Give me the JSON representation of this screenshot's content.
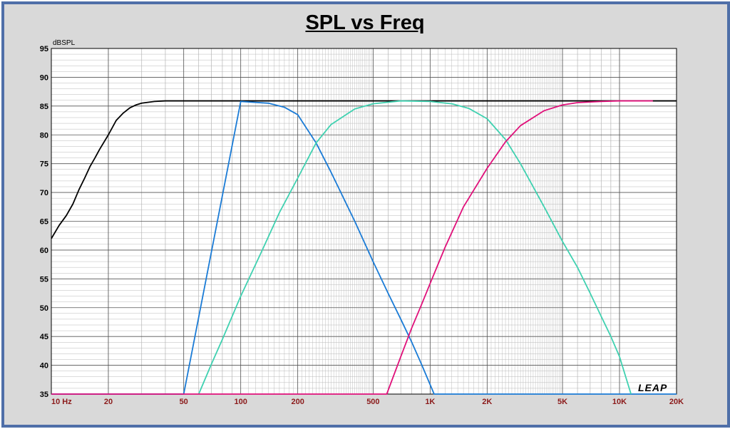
{
  "chart_data": {
    "type": "line",
    "title": "SPL vs Freq",
    "ylabel": "dBSPL",
    "xscale": "log",
    "xlim": [
      10,
      20000
    ],
    "ylim": [
      35,
      95
    ],
    "grid": true,
    "x_ticks": [
      {
        "value": 10,
        "label": "10 Hz"
      },
      {
        "value": 20,
        "label": "20"
      },
      {
        "value": 50,
        "label": "50"
      },
      {
        "value": 100,
        "label": "100"
      },
      {
        "value": 200,
        "label": "200"
      },
      {
        "value": 500,
        "label": "500"
      },
      {
        "value": 1000,
        "label": "1K"
      },
      {
        "value": 2000,
        "label": "2K"
      },
      {
        "value": 5000,
        "label": "5K"
      },
      {
        "value": 10000,
        "label": "10K"
      },
      {
        "value": 20000,
        "label": "20K"
      }
    ],
    "y_ticks": [
      "95",
      "90",
      "85",
      "80",
      "75",
      "70",
      "65",
      "60",
      "55",
      "50",
      "45",
      "40",
      "35"
    ],
    "watermark": "LEAP",
    "series": [
      {
        "color": "#000000",
        "x": [
          10,
          11,
          12,
          13,
          14,
          15,
          16,
          17,
          18,
          20,
          22,
          24,
          26,
          28,
          30,
          35,
          40,
          50,
          70,
          100,
          200,
          500,
          1000,
          2000,
          5000,
          10000,
          20000
        ],
        "y": [
          62,
          64.3,
          66,
          68,
          70.5,
          72.5,
          74.5,
          76,
          77.5,
          80,
          82.5,
          83.8,
          84.7,
          85.2,
          85.5,
          85.8,
          85.9,
          85.9,
          85.9,
          85.9,
          85.9,
          85.9,
          85.9,
          85.9,
          85.9,
          85.9,
          85.9
        ]
      },
      {
        "color": "#1a7bd6",
        "x": [
          10,
          20,
          50,
          100,
          140,
          170,
          200,
          250,
          300,
          400,
          500,
          600,
          700,
          800,
          900,
          1050,
          20000
        ],
        "y": [
          35,
          35,
          35,
          85.8,
          85.5,
          84.8,
          83.5,
          78.6,
          73.5,
          65,
          58,
          52.5,
          48,
          44,
          40.2,
          35,
          35
        ]
      },
      {
        "color": "#3fd1b0",
        "x": [
          60,
          70,
          80,
          100,
          130,
          160,
          200,
          250,
          300,
          400,
          500,
          700,
          1000,
          1300,
          1600,
          2000,
          2500,
          3000,
          4000,
          5000,
          6000,
          7000,
          8000,
          9000,
          10000,
          11500
        ],
        "y": [
          35,
          40.2,
          44.5,
          52,
          60,
          66.5,
          72.5,
          78.6,
          81.8,
          84.5,
          85.4,
          85.9,
          85.8,
          85.4,
          84.6,
          82.8,
          79.2,
          75,
          67.5,
          61.5,
          57,
          52.5,
          48.5,
          45,
          41.5,
          35
        ]
      },
      {
        "color": "#e0107a",
        "x": [
          10,
          20,
          50,
          100,
          200,
          500,
          590,
          700,
          800,
          900,
          1000,
          1200,
          1500,
          2000,
          2500,
          3000,
          4000,
          5000,
          6000,
          8000,
          10000,
          15000
        ],
        "y": [
          35,
          35,
          35,
          35,
          35,
          35,
          35,
          41.5,
          46.5,
          50.5,
          54.2,
          60.5,
          67.5,
          74.2,
          78.8,
          81.6,
          84.2,
          85.2,
          85.6,
          85.8,
          85.9,
          85.9
        ]
      }
    ]
  }
}
